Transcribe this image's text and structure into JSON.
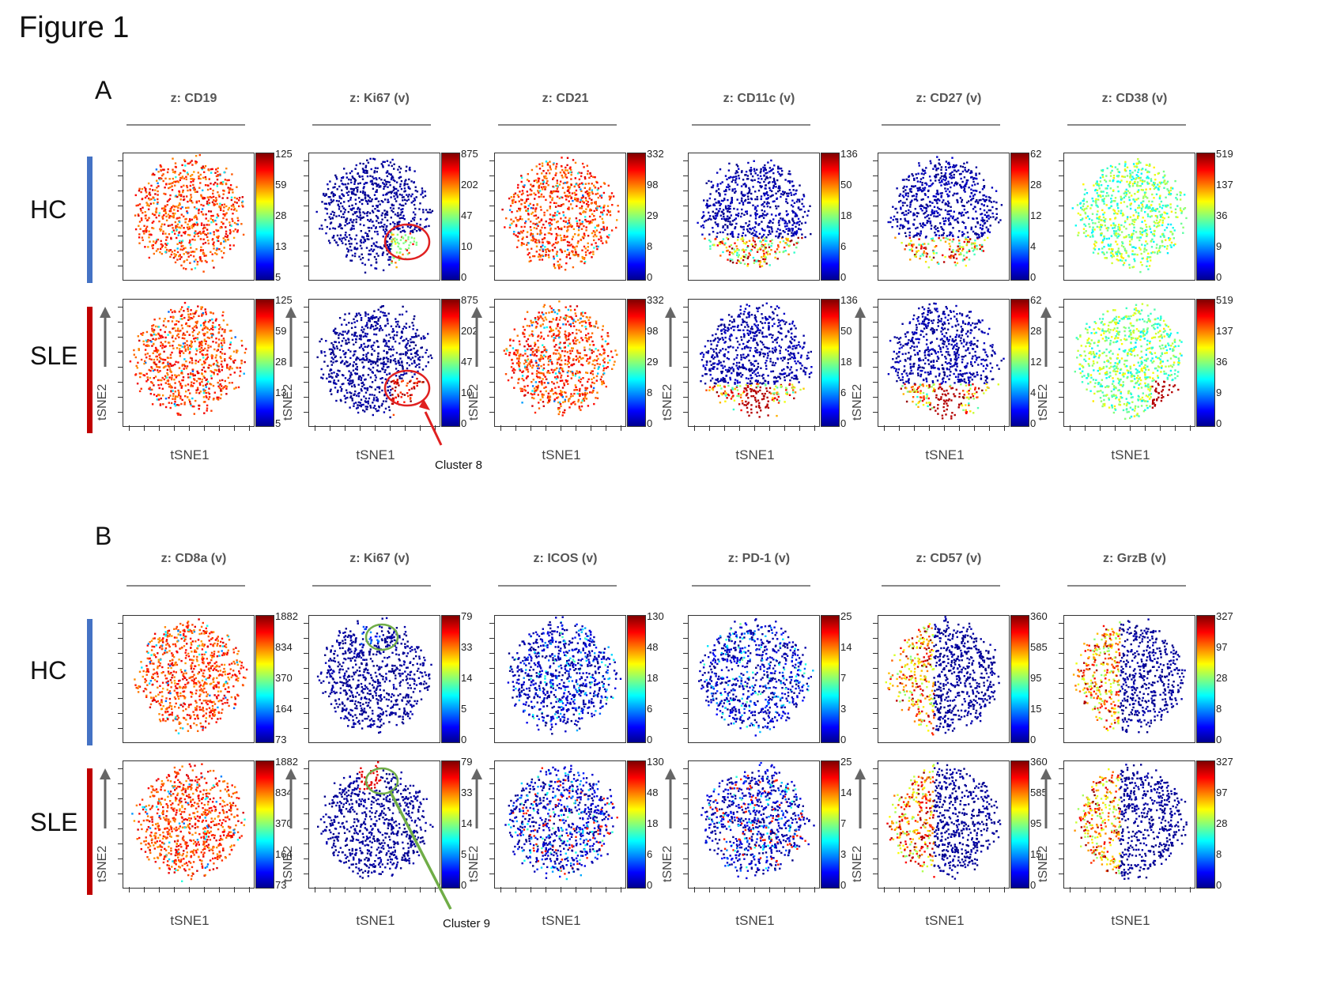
{
  "figure_title": "Figure 1",
  "panels": [
    {
      "letter": "A",
      "groups": [
        "HC",
        "SLE"
      ],
      "colors": {
        "hc_bar": "#4472c4",
        "sle_bar": "#c00000"
      },
      "x_axis_label": "tSNE1",
      "y_axis_label": "tSNE2",
      "markers": [
        {
          "title": "z: CD19",
          "scale": [
            "125",
            "59",
            "28",
            "13",
            "5"
          ]
        },
        {
          "title": "z: Ki67 (v)",
          "scale": [
            "875",
            "202",
            "47",
            "10",
            "0"
          ]
        },
        {
          "title": "z: CD21",
          "scale": [
            "332",
            "98",
            "29",
            "8",
            "0"
          ]
        },
        {
          "title": "z: CD11c (v)",
          "scale": [
            "136",
            "50",
            "18",
            "6",
            "0"
          ]
        },
        {
          "title": "z: CD27 (v)",
          "scale": [
            "62",
            "28",
            "12",
            "4",
            "0"
          ]
        },
        {
          "title": "z: CD38 (v)",
          "scale": [
            "519",
            "137",
            "36",
            "9",
            "0"
          ]
        }
      ],
      "annotation": {
        "label": "Cluster 8",
        "color": "#e02020"
      }
    },
    {
      "letter": "B",
      "groups": [
        "HC",
        "SLE"
      ],
      "colors": {
        "hc_bar": "#4472c4",
        "sle_bar": "#c00000"
      },
      "x_axis_label": "tSNE1",
      "y_axis_label": "tSNE2",
      "markers": [
        {
          "title": "z: CD8a (v)",
          "scale": [
            "1882",
            "834",
            "370",
            "164",
            "73"
          ]
        },
        {
          "title": "z: Ki67 (v)",
          "scale": [
            "79",
            "33",
            "14",
            "5",
            "0"
          ]
        },
        {
          "title": "z: ICOS (v)",
          "scale": [
            "130",
            "48",
            "18",
            "6",
            "0"
          ]
        },
        {
          "title": "z: PD-1 (v)",
          "scale": [
            "25",
            "14",
            "7",
            "3",
            "0"
          ]
        },
        {
          "title": "z: CD57 (v)",
          "scale": [
            "360",
            "585",
            "95",
            "15",
            "0"
          ]
        },
        {
          "title": "z: GrzB (v)",
          "scale": [
            "327",
            "97",
            "28",
            "8",
            "0"
          ]
        }
      ],
      "annotation": {
        "label": "Cluster 9",
        "color": "#70ad47"
      }
    }
  ]
}
